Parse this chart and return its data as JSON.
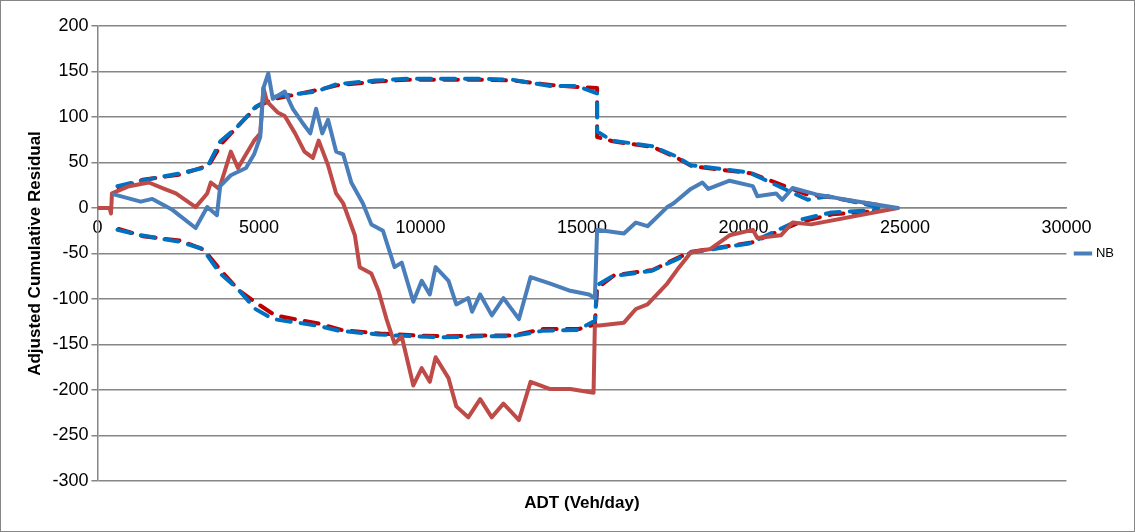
{
  "chart_data": {
    "type": "line",
    "xlabel": "ADT (Veh/day)",
    "ylabel": "Adjusted Cumulative Residual",
    "xlim": [
      0,
      30000
    ],
    "xticks": [
      0,
      5000,
      10000,
      15000,
      20000,
      25000,
      30000
    ],
    "ylim": [
      -300,
      200
    ],
    "yticks": [
      -300,
      -250,
      -200,
      -150,
      -100,
      -50,
      0,
      50,
      100,
      150,
      200
    ],
    "grid": "y",
    "legend": "right",
    "marker": "none",
    "series": [
      {
        "name": "NB",
        "color": "#4a7ebb",
        "line_style": "solid",
        "x": [
          507,
          1340,
          1700,
          2320,
          3040,
          3400,
          3700,
          3800,
          4130,
          4600,
          4850,
          5040,
          5140,
          5290,
          5430,
          5800,
          6050,
          6340,
          6590,
          6770,
          6960,
          7140,
          7390,
          7610,
          7860,
          8220,
          8480,
          8840,
          9200,
          9420,
          9780,
          10040,
          10290,
          10470,
          10870,
          11110,
          11480,
          11600,
          11850,
          12210,
          12570,
          13050,
          13410,
          14020,
          14640,
          15220,
          15400,
          15470,
          16300,
          16670,
          17030,
          17640,
          17830,
          18370,
          18730,
          18910,
          19570,
          20290,
          20430,
          21010,
          21200,
          21520,
          22250,
          23190,
          24780
        ],
        "values": [
          15,
          7,
          10,
          -2,
          -22,
          1,
          -8,
          24,
          36,
          44,
          59,
          78,
          132,
          148,
          120,
          128,
          109,
          94,
          82,
          109,
          82,
          97,
          62,
          59,
          28,
          5,
          -18,
          -25,
          -65,
          -60,
          -103,
          -80,
          -95,
          -65,
          -80,
          -106,
          -99,
          -114,
          -95,
          -118,
          -99,
          -122,
          -76,
          -83,
          -91,
          -95,
          -99,
          -24,
          -28,
          -16,
          -20,
          1,
          5,
          21,
          28,
          21,
          30,
          24,
          13,
          16,
          9,
          22,
          15,
          9,
          0
        ]
      },
      {
        "color": "#be4b48",
        "line_style": "solid",
        "x": [
          0,
          380,
          420,
          450,
          980,
          1590,
          2070,
          2430,
          3040,
          3400,
          3510,
          3770,
          4130,
          4350,
          4600,
          4850,
          5040,
          5140,
          5250,
          5580,
          5800,
          6120,
          6410,
          6670,
          6850,
          7140,
          7390,
          7610,
          7970,
          8120,
          8480,
          8700,
          8950,
          9200,
          9420,
          9780,
          10040,
          10290,
          10470,
          10870,
          11110,
          11480,
          11850,
          12210,
          12570,
          13050,
          13410,
          14020,
          14640,
          15360,
          15400,
          15540,
          16300,
          16670,
          17030,
          17640,
          18010,
          18370,
          18980,
          19570,
          20290,
          20430,
          21160,
          21520,
          22100,
          24780
        ],
        "values": [
          0,
          0,
          -6,
          16,
          24,
          28,
          21,
          16,
          1,
          16,
          28,
          21,
          62,
          44,
          59,
          74,
          82,
          132,
          117,
          105,
          101,
          82,
          62,
          55,
          74,
          47,
          16,
          5,
          -30,
          -65,
          -72,
          -91,
          -122,
          -149,
          -141,
          -195,
          -176,
          -191,
          -164,
          -187,
          -218,
          -230,
          -210,
          -230,
          -215,
          -233,
          -191,
          -199,
          -199,
          -203,
          -129,
          -129,
          -126,
          -111,
          -106,
          -83,
          -65,
          -49,
          -45,
          -30,
          -24,
          -33,
          -30,
          -16,
          -18,
          0
        ]
      },
      {
        "color": "#0070c0",
        "line_style": "dashed",
        "x": [
          620,
          1340,
          2540,
          3400,
          3800,
          4350,
          4890,
          5430,
          6770,
          7390,
          8590,
          9570,
          10760,
          11960,
          12830,
          14020,
          14860,
          15470,
          15470,
          15940,
          17170,
          17900,
          18370,
          20180,
          21990,
          22610,
          24170
        ],
        "values": [
          24,
          30,
          38,
          45,
          73,
          90,
          111,
          122,
          128,
          136,
          140,
          142,
          142,
          142,
          141,
          134,
          134,
          126,
          84,
          74,
          68,
          57,
          47,
          39,
          9,
          13,
          1
        ]
      },
      {
        "color": "#c00000",
        "line_style": "dashed",
        "x": [
          660,
          1400,
          2600,
          3450,
          3850,
          4400,
          4950,
          5500,
          6850,
          7450,
          8650,
          9600,
          10800,
          12000,
          12900,
          14100,
          14900,
          15470,
          15470,
          16000,
          17200,
          17950,
          18400,
          20250,
          21950,
          22650,
          24200
        ],
        "values": [
          22,
          31,
          37,
          47,
          71,
          92,
          112,
          120,
          130,
          135,
          139,
          141,
          141,
          141,
          140,
          135,
          133,
          132,
          78,
          73,
          67,
          55,
          46,
          38,
          15,
          12,
          3
        ]
      },
      {
        "color": "#0070c0",
        "line_style": "dashed",
        "x": [
          620,
          1340,
          2540,
          3260,
          3800,
          4350,
          4890,
          5430,
          6770,
          7500,
          8700,
          9780,
          10760,
          11960,
          12830,
          13770,
          14860,
          15400,
          15470,
          15940,
          17170,
          17900,
          18370,
          20180,
          21740,
          22720,
          24170
        ],
        "values": [
          -24,
          -30,
          -37,
          -45,
          -72,
          -89,
          -111,
          -122,
          -129,
          -135,
          -139,
          -141,
          -142,
          -141,
          -141,
          -135,
          -134,
          -124,
          -85,
          -75,
          -69,
          -57,
          -49,
          -39,
          -13,
          -5,
          -2
        ]
      },
      {
        "color": "#c00000",
        "line_style": "dashed",
        "x": [
          660,
          1400,
          2600,
          3300,
          3850,
          4400,
          4950,
          5500,
          6850,
          7550,
          8750,
          9800,
          10800,
          12000,
          12900,
          13800,
          14900,
          15400,
          15470,
          16000,
          17200,
          17950,
          18400,
          20250,
          21800,
          22750,
          24200
        ],
        "values": [
          -23,
          -31,
          -36,
          -46,
          -70,
          -91,
          -105,
          -118,
          -127,
          -134,
          -138,
          -140,
          -141,
          -140,
          -140,
          -133,
          -133,
          -128,
          -88,
          -74,
          -68,
          -55,
          -48,
          -38,
          -15,
          -7,
          -3
        ]
      }
    ]
  }
}
